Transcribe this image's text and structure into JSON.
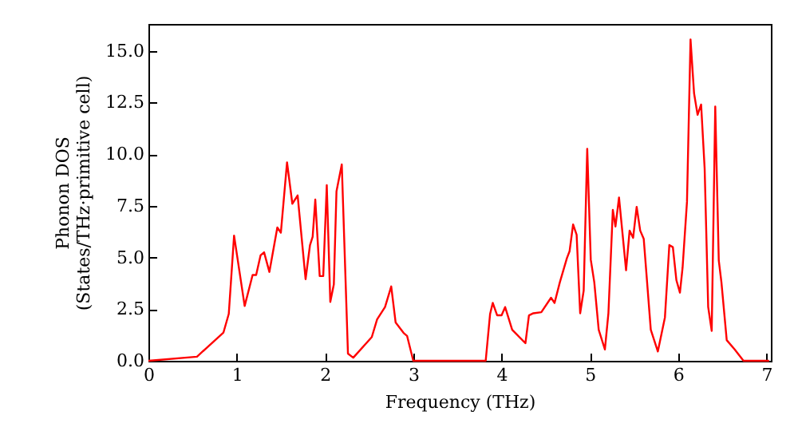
{
  "chart_data": {
    "type": "line",
    "xlabel": "Frequency (THz)",
    "ylabel": "Phonon DOS\n(States/THz·primitive cell)",
    "x": [
      0,
      0.55,
      0.85,
      0.91,
      0.97,
      1.09,
      1.18,
      1.22,
      1.27,
      1.31,
      1.37,
      1.46,
      1.5,
      1.57,
      1.63,
      1.69,
      1.78,
      1.83,
      1.86,
      1.89,
      1.94,
      1.98,
      2.02,
      2.06,
      2.1,
      2.13,
      2.19,
      2.26,
      2.32,
      2.53,
      2.59,
      2.68,
      2.75,
      2.8,
      2.89,
      2.93,
      3.0,
      3.82,
      3.87,
      3.9,
      3.95,
      4.0,
      4.04,
      4.12,
      4.27,
      4.31,
      4.36,
      4.45,
      4.56,
      4.6,
      4.66,
      4.74,
      4.77,
      4.81,
      4.85,
      4.89,
      4.93,
      4.97,
      5.01,
      5.05,
      5.1,
      5.17,
      5.21,
      5.26,
      5.29,
      5.33,
      5.37,
      5.41,
      5.45,
      5.49,
      5.53,
      5.57,
      5.61,
      5.69,
      5.77,
      5.85,
      5.9,
      5.94,
      5.98,
      6.02,
      6.05,
      6.1,
      6.14,
      6.18,
      6.22,
      6.26,
      6.3,
      6.34,
      6.38,
      6.42,
      6.46,
      6.49,
      6.55,
      6.64,
      6.74,
      7.03
    ],
    "series": [
      {
        "color": "#ff0000",
        "values": [
          0,
          0.2,
          1.37,
          2.27,
          6.06,
          2.65,
          4.15,
          4.15,
          5.1,
          5.25,
          4.3,
          6.45,
          6.2,
          9.6,
          7.6,
          8.0,
          3.95,
          5.6,
          6.0,
          7.8,
          4.1,
          4.1,
          8.5,
          2.85,
          3.7,
          8.2,
          9.5,
          0.35,
          0.15,
          1.15,
          2.0,
          2.6,
          3.6,
          1.85,
          1.35,
          1.2,
          0,
          0,
          2.27,
          2.8,
          2.2,
          2.2,
          2.6,
          1.5,
          0.85,
          2.2,
          2.3,
          2.35,
          3.05,
          2.8,
          3.8,
          4.97,
          5.3,
          6.6,
          6.1,
          2.3,
          3.4,
          10.26,
          4.9,
          3.8,
          1.5,
          0.55,
          2.3,
          7.3,
          6.5,
          7.9,
          6.15,
          4.38,
          6.3,
          5.95,
          7.45,
          6.3,
          5.9,
          1.5,
          0.45,
          2.1,
          5.6,
          5.5,
          3.9,
          3.3,
          4.5,
          7.7,
          15.55,
          12.95,
          11.9,
          12.4,
          9.3,
          2.6,
          1.45,
          12.3,
          4.85,
          3.8,
          1.0,
          0.55,
          0,
          0
        ]
      }
    ],
    "xlim": [
      0,
      7.05
    ],
    "ylim": [
      0,
      16.3
    ],
    "xticks": [
      0,
      1,
      2,
      3,
      4,
      5,
      6,
      7
    ],
    "yticks": [
      {
        "value": 0,
        "label": "0.0"
      },
      {
        "value": 2.5,
        "label": "2.5"
      },
      {
        "value": 5,
        "label": "5.0"
      },
      {
        "value": 7.5,
        "label": "7.5"
      },
      {
        "value": 10,
        "label": "10.0"
      },
      {
        "value": 12.5,
        "label": "12.5"
      },
      {
        "value": 15,
        "label": "15.0"
      }
    ],
    "grid": false,
    "marker": "none",
    "line_style": "solid"
  }
}
